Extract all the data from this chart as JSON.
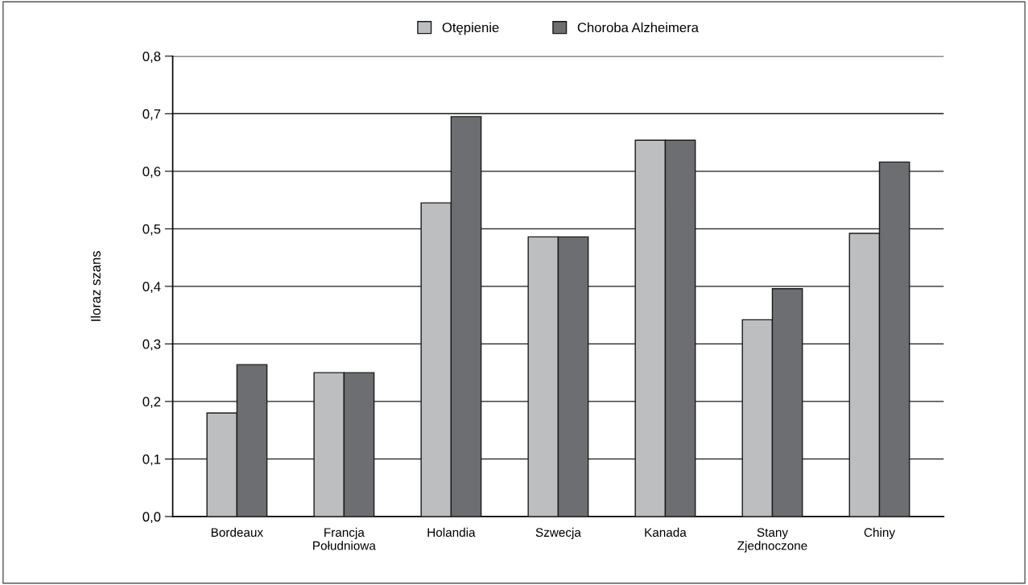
{
  "chart_data": {
    "type": "bar",
    "ylabel": "Iloraz szans",
    "categories": [
      "Bordeaux",
      "Francja\nPołudniowa",
      "Holandia",
      "Szwecja",
      "Kanada",
      "Stany\nZjednoczone",
      "Chiny"
    ],
    "series": [
      {
        "name": "Otępienie",
        "color": "#bdbec0",
        "values": [
          0.18,
          0.25,
          0.545,
          0.486,
          0.654,
          0.342,
          0.492
        ]
      },
      {
        "name": "Choroba Alzheimera",
        "color": "#6d6e71",
        "values": [
          0.264,
          0.25,
          0.695,
          0.486,
          0.654,
          0.396,
          0.616
        ]
      }
    ],
    "ylim": [
      0,
      0.8
    ],
    "yticks": [
      {
        "value": 0,
        "label": "0,0"
      },
      {
        "value": 0.1,
        "label": "0,1"
      },
      {
        "value": 0.2,
        "label": "0,2"
      },
      {
        "value": 0.3,
        "label": "0,3"
      },
      {
        "value": 0.4,
        "label": "0,4"
      },
      {
        "value": 0.5,
        "label": "0,5"
      },
      {
        "value": 0.6,
        "label": "0,6"
      },
      {
        "value": 0.7,
        "label": "0,7"
      },
      {
        "value": 0.8,
        "label": "0,8"
      }
    ],
    "grid": "y",
    "legend": "top"
  }
}
